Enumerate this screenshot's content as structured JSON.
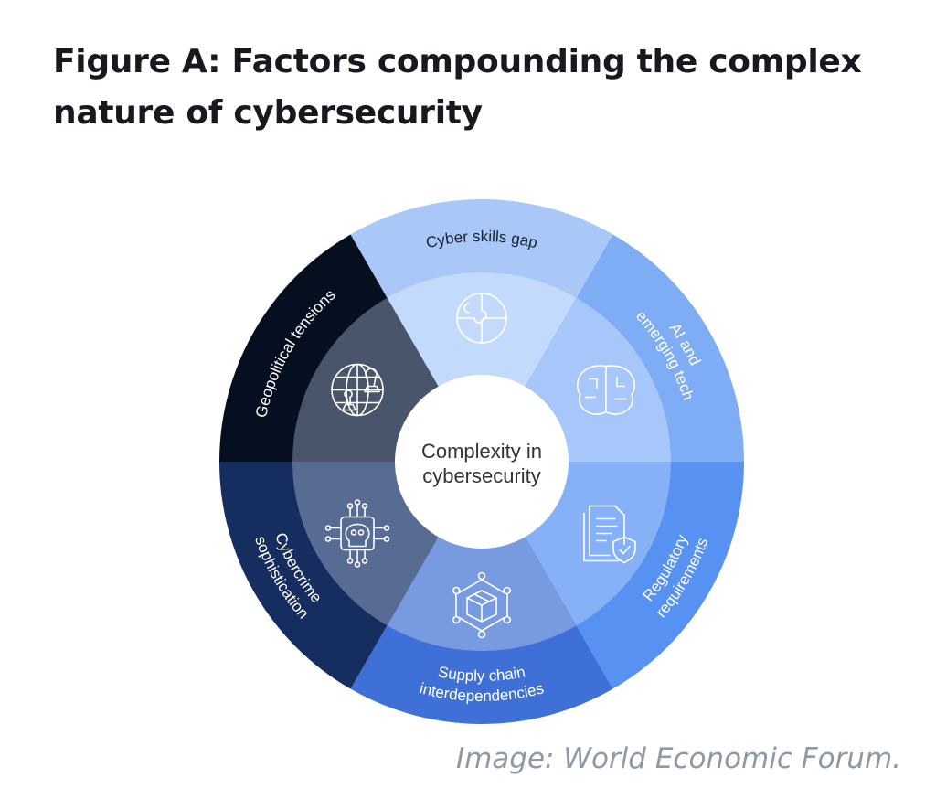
{
  "title": {
    "line1": "Figure A: Factors compounding the complex",
    "line2": "nature of cybersecurity"
  },
  "center": {
    "line1": "Complexity in",
    "line2": "cybersecurity",
    "color": "#ffffff"
  },
  "segments": [
    {
      "lines": [
        "Cyber skills gap"
      ],
      "outer_color": "#a9c8f8",
      "inner_color": "#c4dafc",
      "text_color": "#1a2233",
      "icon": "puzzle-icon"
    },
    {
      "lines": [
        "AI and",
        "emerging tech"
      ],
      "outer_color": "#7fadf5",
      "inner_color": "#a7c6f9",
      "text_color": "#ffffff",
      "icon": "brain-icon"
    },
    {
      "lines": [
        "Regulatory",
        "requirements"
      ],
      "outer_color": "#5791f2",
      "inner_color": "#87b1f6",
      "text_color": "#ffffff",
      "icon": "document-shield-icon"
    },
    {
      "lines": [
        "Supply chain",
        "interdependencies"
      ],
      "outer_color": "#3f70d7",
      "inner_color": "#789ae1",
      "text_color": "#ffffff",
      "icon": "network-box-icon"
    },
    {
      "lines": [
        "Cybercrime",
        "sophistication"
      ],
      "outer_color": "#162d5f",
      "inner_color": "#576b93",
      "text_color": "#ffffff",
      "icon": "skull-chip-icon"
    },
    {
      "lines": [
        "Geopolitical tensions"
      ],
      "outer_color": "#060f20",
      "inner_color": "#48556b",
      "text_color": "#ffffff",
      "icon": "globe-chess-icon"
    }
  ],
  "caption": "Image: World Economic Forum."
}
